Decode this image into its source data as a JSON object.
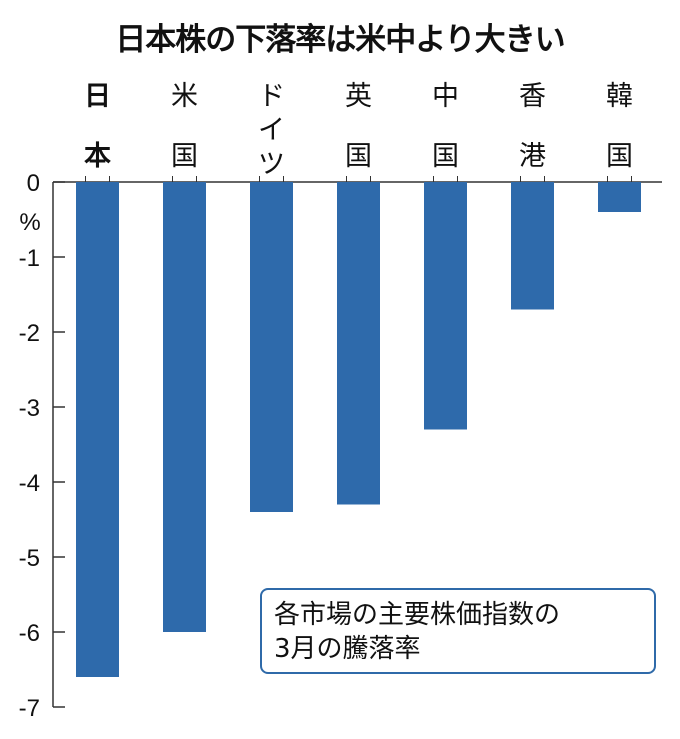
{
  "chart_data": {
    "type": "bar",
    "title": "日本株の下落率は米中より大きい",
    "categories": [
      "日本",
      "米国",
      "ドイツ",
      "英国",
      "中国",
      "香港",
      "韓国"
    ],
    "values": [
      -6.6,
      -6.0,
      -4.4,
      -4.3,
      -3.3,
      -1.7,
      -0.4
    ],
    "ylabel": "%",
    "ylim": [
      -7,
      0
    ],
    "yticks": [
      "0",
      "-1",
      "-2",
      "-3",
      "-4",
      "-5",
      "-6",
      "-7"
    ],
    "grid": false,
    "bar_color": "#2e6aab",
    "annotation": [
      "各市場の主要株価指数の",
      "3月の騰落率"
    ]
  }
}
